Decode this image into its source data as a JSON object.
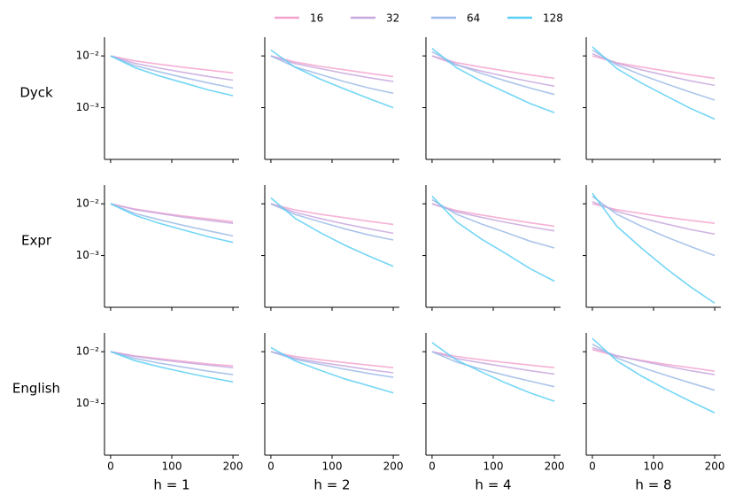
{
  "chart_data": [
    {
      "type": "line",
      "ylabel": "Dyck",
      "x": [
        0,
        40,
        80,
        120,
        160,
        200
      ],
      "xlim": [
        -10,
        210
      ],
      "ylim": [
        0.0001,
        0.023
      ],
      "log_y": true,
      "xticks": [
        0,
        100,
        200
      ],
      "yticks": [
        {
          "value": 0.01,
          "label": "10⁻²"
        },
        {
          "value": 0.001,
          "label": "10⁻³"
        }
      ],
      "series": [
        {
          "name": "16",
          "color": "#f4a3cf",
          "values": [
            0.01,
            0.008,
            0.0069,
            0.006,
            0.0053,
            0.0047
          ]
        },
        {
          "name": "32",
          "color": "#c8a8de",
          "values": [
            0.01,
            0.0072,
            0.0058,
            0.0048,
            0.004,
            0.0034
          ]
        },
        {
          "name": "64",
          "color": "#9dbbe8",
          "values": [
            0.01,
            0.0065,
            0.0049,
            0.0038,
            0.003,
            0.0024
          ]
        },
        {
          "name": "128",
          "color": "#5ccff4",
          "values": [
            0.01,
            0.0059,
            0.0041,
            0.003,
            0.0022,
            0.0017
          ]
        }
      ]
    },
    {
      "type": "line",
      "x": [
        0,
        40,
        80,
        120,
        160,
        200
      ],
      "xlim": [
        -10,
        210
      ],
      "ylim": [
        0.0001,
        0.023
      ],
      "log_y": true,
      "xticks": [
        0,
        100,
        200
      ],
      "yticks": [
        {
          "value": 0.01,
          "label": "10⁻²"
        },
        {
          "value": 0.001,
          "label": "10⁻³"
        }
      ],
      "series": [
        {
          "name": "16",
          "color": "#f4a3cf",
          "values": [
            0.01,
            0.0076,
            0.0063,
            0.0054,
            0.0046,
            0.004
          ]
        },
        {
          "name": "32",
          "color": "#c8a8de",
          "values": [
            0.01,
            0.0071,
            0.0057,
            0.0046,
            0.0038,
            0.0032
          ]
        },
        {
          "name": "64",
          "color": "#9dbbe8",
          "values": [
            0.01,
            0.0061,
            0.0044,
            0.0032,
            0.0024,
            0.0019
          ]
        },
        {
          "name": "128",
          "color": "#5ccff4",
          "values": [
            0.013,
            0.006,
            0.0036,
            0.0023,
            0.0015,
            0.001
          ]
        }
      ]
    },
    {
      "type": "line",
      "x": [
        0,
        40,
        80,
        120,
        160,
        200
      ],
      "xlim": [
        -10,
        210
      ],
      "ylim": [
        0.0001,
        0.023
      ],
      "log_y": true,
      "xticks": [
        0,
        100,
        200
      ],
      "yticks": [
        {
          "value": 0.01,
          "label": "10⁻²"
        },
        {
          "value": 0.001,
          "label": "10⁻³"
        }
      ],
      "series": [
        {
          "name": "16",
          "color": "#f4a3cf",
          "values": [
            0.01,
            0.0074,
            0.0061,
            0.0051,
            0.0043,
            0.0037
          ]
        },
        {
          "name": "32",
          "color": "#c8a8de",
          "values": [
            0.01,
            0.0067,
            0.0051,
            0.004,
            0.0032,
            0.0026
          ]
        },
        {
          "name": "64",
          "color": "#9dbbe8",
          "values": [
            0.012,
            0.0068,
            0.0046,
            0.0033,
            0.0024,
            0.0018
          ]
        },
        {
          "name": "128",
          "color": "#5ccff4",
          "values": [
            0.014,
            0.0059,
            0.0033,
            0.002,
            0.0012,
            0.0008
          ]
        }
      ]
    },
    {
      "type": "line",
      "x": [
        0,
        40,
        80,
        120,
        160,
        200
      ],
      "xlim": [
        -10,
        210
      ],
      "ylim": [
        0.0001,
        0.023
      ],
      "log_y": true,
      "xticks": [
        0,
        100,
        200
      ],
      "yticks": [
        {
          "value": 0.01,
          "label": "10⁻²"
        },
        {
          "value": 0.001,
          "label": "10⁻³"
        }
      ],
      "series": [
        {
          "name": "16",
          "color": "#f4a3cf",
          "values": [
            0.01,
            0.0074,
            0.0061,
            0.0051,
            0.0043,
            0.0037
          ]
        },
        {
          "name": "32",
          "color": "#c8a8de",
          "values": [
            0.011,
            0.0072,
            0.0054,
            0.0042,
            0.0033,
            0.0027
          ]
        },
        {
          "name": "64",
          "color": "#9dbbe8",
          "values": [
            0.013,
            0.0067,
            0.0043,
            0.0029,
            0.002,
            0.0014
          ]
        },
        {
          "name": "128",
          "color": "#5ccff4",
          "values": [
            0.015,
            0.0057,
            0.003,
            0.0017,
            0.00097,
            0.0006
          ]
        }
      ]
    },
    {
      "type": "line",
      "ylabel": "Expr",
      "x": [
        0,
        40,
        80,
        120,
        160,
        200
      ],
      "xlim": [
        -10,
        210
      ],
      "ylim": [
        0.0001,
        0.023
      ],
      "log_y": true,
      "xticks": [
        0,
        100,
        200
      ],
      "yticks": [
        {
          "value": 0.01,
          "label": "10⁻²"
        },
        {
          "value": 0.001,
          "label": "10⁻³"
        }
      ],
      "series": [
        {
          "name": "16",
          "color": "#f4a3cf",
          "values": [
            0.01,
            0.0079,
            0.0067,
            0.0058,
            0.0051,
            0.0045
          ]
        },
        {
          "name": "32",
          "color": "#c8a8de",
          "values": [
            0.01,
            0.0077,
            0.0065,
            0.0055,
            0.0048,
            0.0042
          ]
        },
        {
          "name": "64",
          "color": "#9dbbe8",
          "values": [
            0.01,
            0.0065,
            0.0049,
            0.0038,
            0.003,
            0.0024
          ]
        },
        {
          "name": "128",
          "color": "#5ccff4",
          "values": [
            0.01,
            0.006,
            0.0042,
            0.0031,
            0.0023,
            0.0018
          ]
        }
      ]
    },
    {
      "type": "line",
      "x": [
        0,
        40,
        80,
        120,
        160,
        200
      ],
      "xlim": [
        -10,
        210
      ],
      "ylim": [
        0.0001,
        0.023
      ],
      "log_y": true,
      "xticks": [
        0,
        100,
        200
      ],
      "yticks": [
        {
          "value": 0.01,
          "label": "10⁻²"
        },
        {
          "value": 0.001,
          "label": "10⁻³"
        }
      ],
      "series": [
        {
          "name": "16",
          "color": "#f4a3cf",
          "values": [
            0.01,
            0.0076,
            0.0063,
            0.0054,
            0.0046,
            0.004
          ]
        },
        {
          "name": "32",
          "color": "#c8a8de",
          "values": [
            0.01,
            0.0068,
            0.0052,
            0.0041,
            0.0033,
            0.0027
          ]
        },
        {
          "name": "64",
          "color": "#9dbbe8",
          "values": [
            0.01,
            0.0062,
            0.0045,
            0.0033,
            0.0025,
            0.002
          ]
        },
        {
          "name": "128",
          "color": "#5ccff4",
          "values": [
            0.013,
            0.0052,
            0.0028,
            0.0016,
            0.00098,
            0.00062
          ]
        }
      ]
    },
    {
      "type": "line",
      "x": [
        0,
        40,
        80,
        120,
        160,
        200
      ],
      "xlim": [
        -10,
        210
      ],
      "ylim": [
        0.0001,
        0.023
      ],
      "log_y": true,
      "xticks": [
        0,
        100,
        200
      ],
      "yticks": [
        {
          "value": 0.01,
          "label": "10⁻²"
        },
        {
          "value": 0.001,
          "label": "10⁻³"
        }
      ],
      "series": [
        {
          "name": "16",
          "color": "#f4a3cf",
          "values": [
            0.01,
            0.0074,
            0.0061,
            0.0051,
            0.0043,
            0.0037
          ]
        },
        {
          "name": "32",
          "color": "#c8a8de",
          "values": [
            0.01,
            0.007,
            0.0055,
            0.0044,
            0.0036,
            0.003
          ]
        },
        {
          "name": "64",
          "color": "#9dbbe8",
          "values": [
            0.012,
            0.0063,
            0.0041,
            0.0028,
            0.0019,
            0.0014
          ]
        },
        {
          "name": "128",
          "color": "#5ccff4",
          "values": [
            0.014,
            0.0045,
            0.0021,
            0.0011,
            0.00056,
            0.00032
          ]
        }
      ]
    },
    {
      "type": "line",
      "x": [
        0,
        40,
        80,
        120,
        160,
        200
      ],
      "xlim": [
        -10,
        210
      ],
      "ylim": [
        0.0001,
        0.023
      ],
      "log_y": true,
      "xticks": [
        0,
        100,
        200
      ],
      "yticks": [
        {
          "value": 0.01,
          "label": "10⁻²"
        },
        {
          "value": 0.001,
          "label": "10⁻³"
        }
      ],
      "series": [
        {
          "name": "16",
          "color": "#f4a3cf",
          "values": [
            0.01,
            0.0077,
            0.0065,
            0.0055,
            0.0048,
            0.0042
          ]
        },
        {
          "name": "32",
          "color": "#c8a8de",
          "values": [
            0.011,
            0.0071,
            0.0053,
            0.0041,
            0.0032,
            0.0026
          ]
        },
        {
          "name": "64",
          "color": "#9dbbe8",
          "values": [
            0.014,
            0.0063,
            0.0037,
            0.0023,
            0.0015,
            0.001
          ]
        },
        {
          "name": "128",
          "color": "#5ccff4",
          "values": [
            0.016,
            0.0037,
            0.0014,
            0.00057,
            0.00025,
            0.00012
          ]
        }
      ]
    },
    {
      "type": "line",
      "ylabel": "English",
      "xlabel": "h = 1",
      "x": [
        0,
        40,
        80,
        120,
        160,
        200
      ],
      "xlim": [
        -10,
        210
      ],
      "ylim": [
        0.0001,
        0.023
      ],
      "log_y": true,
      "xticks": [
        0,
        100,
        200
      ],
      "yticks": [
        {
          "value": 0.01,
          "label": "10⁻²"
        },
        {
          "value": 0.001,
          "label": "10⁻³"
        }
      ],
      "series": [
        {
          "name": "16",
          "color": "#f4a3cf",
          "values": [
            0.01,
            0.0083,
            0.0073,
            0.0065,
            0.0058,
            0.0053
          ]
        },
        {
          "name": "32",
          "color": "#c8a8de",
          "values": [
            0.01,
            0.0081,
            0.007,
            0.0062,
            0.0055,
            0.0049
          ]
        },
        {
          "name": "64",
          "color": "#9dbbe8",
          "values": [
            0.01,
            0.0074,
            0.006,
            0.005,
            0.0042,
            0.0036
          ]
        },
        {
          "name": "128",
          "color": "#5ccff4",
          "values": [
            0.01,
            0.0067,
            0.0051,
            0.004,
            0.0032,
            0.0026
          ]
        }
      ]
    },
    {
      "type": "line",
      "xlabel": "h = 2",
      "x": [
        0,
        40,
        80,
        120,
        160,
        200
      ],
      "xlim": [
        -10,
        210
      ],
      "ylim": [
        0.0001,
        0.023
      ],
      "log_y": true,
      "xticks": [
        0,
        100,
        200
      ],
      "yticks": [
        {
          "value": 0.01,
          "label": "10⁻²"
        },
        {
          "value": 0.001,
          "label": "10⁻³"
        }
      ],
      "series": [
        {
          "name": "16",
          "color": "#f4a3cf",
          "values": [
            0.01,
            0.0081,
            0.007,
            0.0062,
            0.0055,
            0.0049
          ]
        },
        {
          "name": "32",
          "color": "#c8a8de",
          "values": [
            0.01,
            0.0075,
            0.0062,
            0.0053,
            0.0045,
            0.0039
          ]
        },
        {
          "name": "64",
          "color": "#9dbbe8",
          "values": [
            0.01,
            0.0071,
            0.0057,
            0.0046,
            0.0038,
            0.0032
          ]
        },
        {
          "name": "128",
          "color": "#5ccff4",
          "values": [
            0.012,
            0.0066,
            0.0044,
            0.003,
            0.0022,
            0.0016
          ]
        }
      ]
    },
    {
      "type": "line",
      "xlabel": "h = 4",
      "x": [
        0,
        40,
        80,
        120,
        160,
        200
      ],
      "xlim": [
        -10,
        210
      ],
      "ylim": [
        0.0001,
        0.023
      ],
      "log_y": true,
      "xticks": [
        0,
        100,
        200
      ],
      "yticks": [
        {
          "value": 0.01,
          "label": "10⁻²"
        },
        {
          "value": 0.001,
          "label": "10⁻³"
        }
      ],
      "series": [
        {
          "name": "16",
          "color": "#f4a3cf",
          "values": [
            0.01,
            0.0081,
            0.007,
            0.0062,
            0.0055,
            0.0049
          ]
        },
        {
          "name": "32",
          "color": "#c8a8de",
          "values": [
            0.01,
            0.0074,
            0.0061,
            0.0051,
            0.0043,
            0.0037
          ]
        },
        {
          "name": "64",
          "color": "#9dbbe8",
          "values": [
            0.01,
            0.0063,
            0.0046,
            0.0035,
            0.0027,
            0.0021
          ]
        },
        {
          "name": "128",
          "color": "#5ccff4",
          "values": [
            0.015,
            0.0069,
            0.0041,
            0.0025,
            0.0016,
            0.0011
          ]
        }
      ]
    },
    {
      "type": "line",
      "xlabel": "h = 8",
      "x": [
        0,
        40,
        80,
        120,
        160,
        200
      ],
      "xlim": [
        -10,
        210
      ],
      "ylim": [
        0.0001,
        0.023
      ],
      "log_y": true,
      "xticks": [
        0,
        100,
        200
      ],
      "yticks": [
        {
          "value": 0.01,
          "label": "10⁻²"
        },
        {
          "value": 0.001,
          "label": "10⁻³"
        }
      ],
      "series": [
        {
          "name": "16",
          "color": "#f4a3cf",
          "values": [
            0.011,
            0.0082,
            0.0068,
            0.0057,
            0.0049,
            0.0042
          ]
        },
        {
          "name": "32",
          "color": "#c8a8de",
          "values": [
            0.012,
            0.0084,
            0.0066,
            0.0053,
            0.0043,
            0.0036
          ]
        },
        {
          "name": "64",
          "color": "#9dbbe8",
          "values": [
            0.014,
            0.0076,
            0.005,
            0.0035,
            0.0025,
            0.0018
          ]
        },
        {
          "name": "128",
          "color": "#5ccff4",
          "values": [
            0.018,
            0.0067,
            0.0034,
            0.0019,
            0.0011,
            0.00066
          ]
        }
      ]
    }
  ],
  "legend": "top"
}
